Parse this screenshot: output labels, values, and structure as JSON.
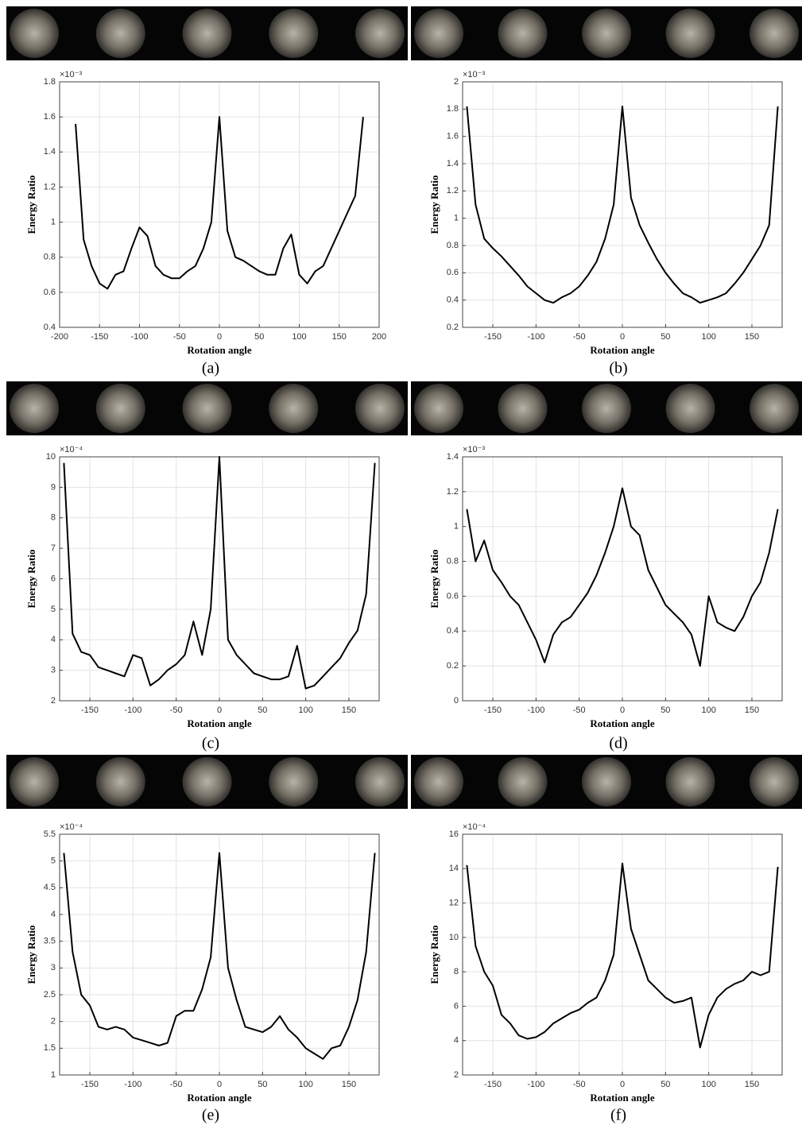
{
  "chart_data": [
    {
      "type": "line",
      "panel_label": "(a)",
      "y_multiplier": "×10⁻³",
      "xlabel": "Rotation angle",
      "ylabel": "Energy Ratio",
      "x": [
        -180,
        -170,
        -160,
        -150,
        -140,
        -130,
        -120,
        -110,
        -100,
        -90,
        -80,
        -70,
        -60,
        -50,
        -40,
        -30,
        -20,
        -10,
        0,
        10,
        20,
        30,
        40,
        50,
        60,
        70,
        80,
        90,
        100,
        110,
        120,
        130,
        140,
        150,
        160,
        170,
        180
      ],
      "series": [
        {
          "color": "#000000",
          "values": [
            1.56,
            0.9,
            0.75,
            0.65,
            0.62,
            0.7,
            0.72,
            0.85,
            0.97,
            0.92,
            0.75,
            0.7,
            0.68,
            0.68,
            0.72,
            0.75,
            0.85,
            1.0,
            1.6,
            0.95,
            0.8,
            0.78,
            0.75,
            0.72,
            0.7,
            0.7,
            0.85,
            0.93,
            0.7,
            0.65,
            0.72,
            0.75,
            0.85,
            0.95,
            1.05,
            1.15,
            1.6
          ]
        }
      ],
      "xlim": [
        -200,
        200
      ],
      "ylim": [
        0.4,
        1.8
      ],
      "xticks": [
        -200,
        -150,
        -100,
        -50,
        0,
        50,
        100,
        150,
        200
      ],
      "yticks": [
        0.4,
        0.6,
        0.8,
        1,
        1.2,
        1.4,
        1.6,
        1.8
      ],
      "grid": true
    },
    {
      "type": "line",
      "panel_label": "(b)",
      "y_multiplier": "×10⁻³",
      "xlabel": "Rotation angle",
      "ylabel": "Energy Ratio",
      "x": [
        -180,
        -170,
        -160,
        -150,
        -140,
        -130,
        -120,
        -110,
        -100,
        -90,
        -80,
        -70,
        -60,
        -50,
        -40,
        -30,
        -20,
        -10,
        0,
        10,
        20,
        30,
        40,
        50,
        60,
        70,
        80,
        90,
        100,
        110,
        120,
        130,
        140,
        150,
        160,
        170,
        180
      ],
      "series": [
        {
          "color": "#000000",
          "values": [
            1.82,
            1.1,
            0.85,
            0.78,
            0.72,
            0.65,
            0.58,
            0.5,
            0.45,
            0.4,
            0.38,
            0.42,
            0.45,
            0.5,
            0.58,
            0.68,
            0.85,
            1.1,
            1.82,
            1.15,
            0.95,
            0.82,
            0.7,
            0.6,
            0.52,
            0.45,
            0.42,
            0.38,
            0.4,
            0.42,
            0.45,
            0.52,
            0.6,
            0.7,
            0.8,
            0.95,
            1.82
          ]
        }
      ],
      "xlim": [
        -185,
        185
      ],
      "ylim": [
        0.2,
        2
      ],
      "xticks": [
        -150,
        -100,
        -50,
        0,
        50,
        100,
        150
      ],
      "yticks": [
        0.2,
        0.4,
        0.6,
        0.8,
        1,
        1.2,
        1.4,
        1.6,
        1.8,
        2
      ],
      "grid": true
    },
    {
      "type": "line",
      "panel_label": "(c)",
      "y_multiplier": "×10⁻⁴",
      "xlabel": "Rotation angle",
      "ylabel": "Energy Ratio",
      "x": [
        -180,
        -170,
        -160,
        -150,
        -140,
        -130,
        -120,
        -110,
        -100,
        -90,
        -80,
        -70,
        -60,
        -50,
        -40,
        -30,
        -20,
        -10,
        0,
        10,
        20,
        30,
        40,
        50,
        60,
        70,
        80,
        90,
        100,
        110,
        120,
        130,
        140,
        150,
        160,
        170,
        180
      ],
      "series": [
        {
          "color": "#000000",
          "values": [
            9.8,
            4.2,
            3.6,
            3.5,
            3.1,
            3.0,
            2.9,
            2.8,
            3.5,
            3.4,
            2.5,
            2.7,
            3.0,
            3.2,
            3.5,
            4.6,
            3.5,
            5.0,
            10,
            4.0,
            3.5,
            3.2,
            2.9,
            2.8,
            2.7,
            2.7,
            2.8,
            3.8,
            2.4,
            2.5,
            2.8,
            3.1,
            3.4,
            3.9,
            4.3,
            5.5,
            9.8
          ]
        }
      ],
      "xlim": [
        -185,
        185
      ],
      "ylim": [
        2,
        10
      ],
      "xticks": [
        -150,
        -100,
        -50,
        0,
        50,
        100,
        150
      ],
      "yticks": [
        2,
        3,
        4,
        5,
        6,
        7,
        8,
        9,
        10
      ],
      "grid": true
    },
    {
      "type": "line",
      "panel_label": "(d)",
      "y_multiplier": "×10⁻³",
      "xlabel": "Rotation angle",
      "ylabel": "Energy Ratio",
      "x": [
        -180,
        -170,
        -160,
        -150,
        -140,
        -130,
        -120,
        -110,
        -100,
        -90,
        -80,
        -70,
        -60,
        -50,
        -40,
        -30,
        -20,
        -10,
        0,
        10,
        20,
        30,
        40,
        50,
        60,
        70,
        80,
        90,
        100,
        110,
        120,
        130,
        140,
        150,
        160,
        170,
        180
      ],
      "series": [
        {
          "color": "#000000",
          "values": [
            1.1,
            0.8,
            0.92,
            0.75,
            0.68,
            0.6,
            0.55,
            0.45,
            0.35,
            0.22,
            0.38,
            0.45,
            0.48,
            0.55,
            0.62,
            0.72,
            0.85,
            1.0,
            1.22,
            1.0,
            0.95,
            0.75,
            0.65,
            0.55,
            0.5,
            0.45,
            0.38,
            0.2,
            0.6,
            0.45,
            0.42,
            0.4,
            0.48,
            0.6,
            0.68,
            0.85,
            1.1
          ]
        }
      ],
      "xlim": [
        -185,
        185
      ],
      "ylim": [
        0,
        1.4
      ],
      "xticks": [
        -150,
        -100,
        -50,
        0,
        50,
        100,
        150
      ],
      "yticks": [
        0,
        0.2,
        0.4,
        0.6,
        0.8,
        1,
        1.2,
        1.4
      ],
      "grid": true
    },
    {
      "type": "line",
      "panel_label": "(e)",
      "y_multiplier": "×10⁻⁴",
      "xlabel": "Rotation angle",
      "ylabel": "Energy Ratio",
      "x": [
        -180,
        -170,
        -160,
        -150,
        -140,
        -130,
        -120,
        -110,
        -100,
        -90,
        -80,
        -70,
        -60,
        -50,
        -40,
        -30,
        -20,
        -10,
        0,
        10,
        20,
        30,
        40,
        50,
        60,
        70,
        80,
        90,
        100,
        110,
        120,
        130,
        140,
        150,
        160,
        170,
        180
      ],
      "series": [
        {
          "color": "#000000",
          "values": [
            5.15,
            3.3,
            2.5,
            2.3,
            1.9,
            1.85,
            1.9,
            1.85,
            1.7,
            1.65,
            1.6,
            1.55,
            1.6,
            2.1,
            2.2,
            2.2,
            2.6,
            3.2,
            5.15,
            3.0,
            2.4,
            1.9,
            1.85,
            1.8,
            1.9,
            2.1,
            1.85,
            1.7,
            1.5,
            1.4,
            1.3,
            1.5,
            1.55,
            1.9,
            2.4,
            3.3,
            5.15
          ]
        }
      ],
      "xlim": [
        -185,
        185
      ],
      "ylim": [
        1,
        5.5
      ],
      "xticks": [
        -150,
        -100,
        -50,
        0,
        50,
        100,
        150
      ],
      "yticks": [
        1,
        1.5,
        2,
        2.5,
        3,
        3.5,
        4,
        4.5,
        5,
        5.5
      ],
      "grid": true
    },
    {
      "type": "line",
      "panel_label": "(f)",
      "y_multiplier": "×10⁻⁴",
      "xlabel": "Rotation angle",
      "ylabel": "Energy Ratio",
      "x": [
        -180,
        -170,
        -160,
        -150,
        -140,
        -130,
        -120,
        -110,
        -100,
        -90,
        -80,
        -70,
        -60,
        -50,
        -40,
        -30,
        -20,
        -10,
        0,
        10,
        20,
        30,
        40,
        50,
        60,
        70,
        80,
        90,
        100,
        110,
        120,
        130,
        140,
        150,
        160,
        170,
        180
      ],
      "series": [
        {
          "color": "#000000",
          "values": [
            14.2,
            9.5,
            8,
            7.2,
            5.5,
            5,
            4.3,
            4.1,
            4.2,
            4.5,
            5.0,
            5.3,
            5.6,
            5.8,
            6.2,
            6.5,
            7.5,
            9,
            14.3,
            10.5,
            9,
            7.5,
            7,
            6.5,
            6.2,
            6.3,
            6.5,
            3.6,
            5.5,
            6.5,
            7,
            7.3,
            7.5,
            8,
            7.8,
            8,
            14.1
          ]
        }
      ],
      "xlim": [
        -185,
        185
      ],
      "ylim": [
        2,
        16
      ],
      "xticks": [
        -150,
        -100,
        -50,
        0,
        50,
        100,
        150
      ],
      "yticks": [
        2,
        4,
        6,
        8,
        10,
        12,
        14,
        16
      ],
      "grid": true
    }
  ]
}
